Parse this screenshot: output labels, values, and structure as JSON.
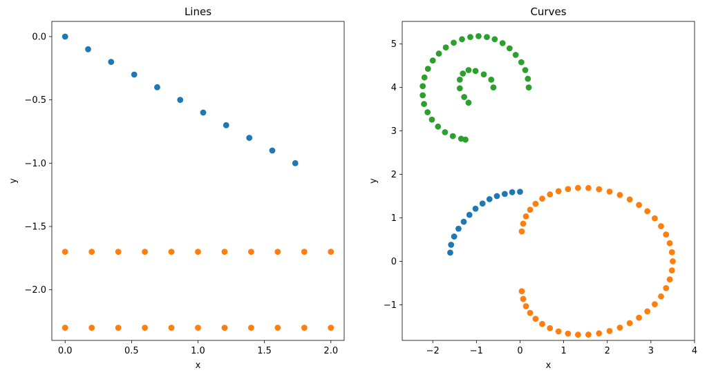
{
  "chart_data": [
    {
      "type": "scatter",
      "title": "Lines",
      "xlabel": "x",
      "ylabel": "y",
      "xlim": [
        -0.1,
        2.1
      ],
      "ylim": [
        -2.4,
        0.12
      ],
      "grid": false,
      "x_ticks": [
        {
          "value": 0.0,
          "label": "0.0"
        },
        {
          "value": 0.5,
          "label": "0.5"
        },
        {
          "value": 1.0,
          "label": "1.0"
        },
        {
          "value": 1.5,
          "label": "1.5"
        },
        {
          "value": 2.0,
          "label": "2.0"
        }
      ],
      "y_ticks": [
        {
          "value": 0.0,
          "label": "0.0"
        },
        {
          "value": -0.5,
          "label": "−0.5"
        },
        {
          "value": -1.0,
          "label": "−1.0"
        },
        {
          "value": -1.5,
          "label": "−1.5"
        },
        {
          "value": -2.0,
          "label": "−2.0"
        }
      ],
      "series": [
        {
          "color": "#1f77b4",
          "x": [
            0.0,
            0.173,
            0.346,
            0.52,
            0.693,
            0.866,
            1.039,
            1.212,
            1.386,
            1.559,
            1.732
          ],
          "y": [
            0.0,
            -0.1,
            -0.2,
            -0.3,
            -0.4,
            -0.5,
            -0.6,
            -0.7,
            -0.8,
            -0.9,
            -1.0
          ]
        },
        {
          "color": "#ff7f0e",
          "x": [
            0.0,
            0.2,
            0.4,
            0.6,
            0.8,
            1.0,
            1.2,
            1.4,
            1.6,
            1.8,
            2.0,
            0.0,
            0.2,
            0.4,
            0.6,
            0.8,
            1.0,
            1.2,
            1.4,
            1.6,
            1.8,
            2.0
          ],
          "y": [
            -1.7,
            -1.7,
            -1.7,
            -1.7,
            -1.7,
            -1.7,
            -1.7,
            -1.7,
            -1.7,
            -1.7,
            -1.7,
            -2.3,
            -2.3,
            -2.3,
            -2.3,
            -2.3,
            -2.3,
            -2.3,
            -2.3,
            -2.3,
            -2.3,
            -2.3
          ]
        }
      ]
    },
    {
      "type": "scatter",
      "title": "Curves",
      "xlabel": "x",
      "ylabel": "y",
      "xlim": [
        -2.7,
        4.0
      ],
      "ylim": [
        -1.82,
        5.52
      ],
      "grid": false,
      "x_ticks": [
        {
          "value": -2,
          "label": "−2"
        },
        {
          "value": -1,
          "label": "−1"
        },
        {
          "value": 0,
          "label": "0"
        },
        {
          "value": 1,
          "label": "1"
        },
        {
          "value": 2,
          "label": "2"
        },
        {
          "value": 3,
          "label": "3"
        },
        {
          "value": 4,
          "label": "4"
        }
      ],
      "y_ticks": [
        {
          "value": -1,
          "label": "−1"
        },
        {
          "value": 0,
          "label": "0"
        },
        {
          "value": 1,
          "label": "1"
        },
        {
          "value": 2,
          "label": "2"
        },
        {
          "value": 3,
          "label": "3"
        },
        {
          "value": 4,
          "label": "4"
        },
        {
          "value": 5,
          "label": "5"
        }
      ],
      "series": [
        {
          "color": "#1f77b4",
          "x": [
            -1.6,
            -1.58,
            -1.51,
            -1.41,
            -1.29,
            -1.16,
            -1.02,
            -0.86,
            -0.7,
            -0.53,
            -0.35,
            -0.18,
            0.0
          ],
          "y": [
            0.2,
            0.38,
            0.57,
            0.75,
            0.91,
            1.07,
            1.21,
            1.33,
            1.43,
            1.5,
            1.55,
            1.59,
            1.6
          ]
        },
        {
          "color": "#ff7f0e",
          "x": [
            3.5,
            3.482,
            3.431,
            3.347,
            3.232,
            3.088,
            2.918,
            2.726,
            2.514,
            2.288,
            2.052,
            1.81,
            1.567,
            1.329,
            1.099,
            0.883,
            0.685,
            0.508,
            0.356,
            0.231,
            0.136,
            0.072,
            0.04,
            0.04,
            0.072,
            0.136,
            0.231,
            0.356,
            0.508,
            0.685,
            0.883,
            1.099,
            1.329,
            1.567,
            1.81,
            2.052,
            2.288,
            2.514,
            2.726,
            2.918,
            3.088,
            3.232,
            3.347,
            3.431,
            3.482
          ],
          "y": [
            0.0,
            0.209,
            0.416,
            0.617,
            0.808,
            0.988,
            1.152,
            1.298,
            1.423,
            1.526,
            1.604,
            1.658,
            1.686,
            1.688,
            1.663,
            1.613,
            1.539,
            1.442,
            1.324,
            1.187,
            1.034,
            0.866,
            0.688,
            -0.688,
            -0.866,
            -1.034,
            -1.187,
            -1.324,
            -1.442,
            -1.539,
            -1.613,
            -1.663,
            -1.688,
            -1.686,
            -1.658,
            -1.604,
            -1.526,
            -1.423,
            -1.298,
            -1.152,
            -0.988,
            -0.808,
            -0.617,
            -0.416,
            -0.209
          ]
        },
        {
          "color": "#2ca02c",
          "x": [
            0.2,
            0.18,
            0.12,
            0.03,
            -0.1,
            -0.24,
            -0.4,
            -0.58,
            -0.76,
            -0.95,
            -1.14,
            -1.33,
            -1.52,
            -1.7,
            -1.86,
            -2.0,
            -2.11,
            -2.19,
            -2.23,
            -2.23,
            -2.2,
            -2.12,
            -2.02,
            -1.88,
            -1.72,
            -1.54,
            -1.35,
            -1.25,
            -1.18,
            -1.28,
            -1.38,
            -1.38,
            -1.31,
            -1.18,
            -1.02,
            -0.83,
            -0.66,
            -0.61
          ],
          "y": [
            4.0,
            4.2,
            4.4,
            4.58,
            4.75,
            4.9,
            5.02,
            5.11,
            5.16,
            5.18,
            5.16,
            5.11,
            5.03,
            4.92,
            4.78,
            4.62,
            4.43,
            4.23,
            4.03,
            3.82,
            3.62,
            3.43,
            3.26,
            3.1,
            2.97,
            2.88,
            2.82,
            2.8,
            3.65,
            3.78,
            3.98,
            4.18,
            4.32,
            4.4,
            4.38,
            4.3,
            4.18,
            4.0
          ]
        }
      ]
    }
  ]
}
